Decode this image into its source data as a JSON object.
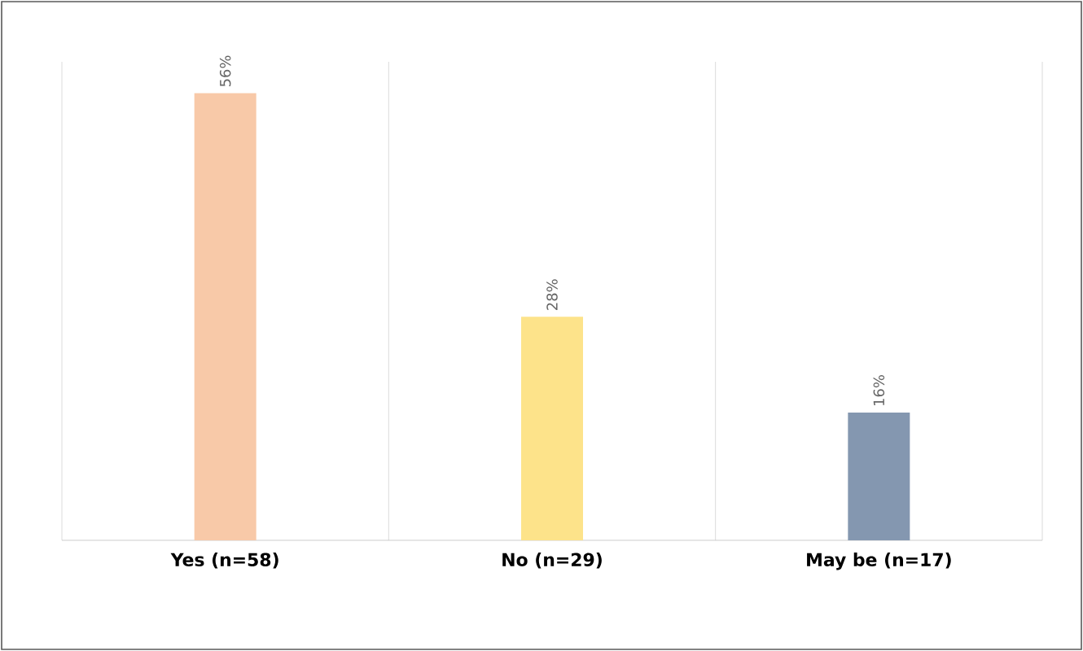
{
  "chart_data": {
    "type": "bar",
    "categories": [
      "**Yes (n=58)**",
      "**No (n=29)**",
      "**May be (n=17)**"
    ],
    "values": [
      56,
      28,
      16
    ],
    "colors": [
      "#f8c9a8",
      "#fde38a",
      "#8497b0"
    ],
    "value_labels": [
      "56%",
      "28%",
      "16%"
    ],
    "grid": "x"
  }
}
